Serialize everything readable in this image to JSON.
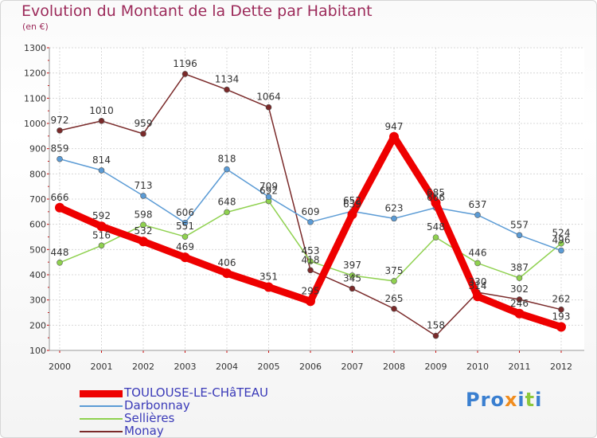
{
  "title": "Evolution du Montant de la Dette par Habitant",
  "unit": "(en €)",
  "logo": {
    "text": "Proxiti",
    "letters": [
      {
        "ch": "P",
        "color": "#3a7fd0"
      },
      {
        "ch": "r",
        "color": "#3a7fd0"
      },
      {
        "ch": "o",
        "color": "#3a7fd0"
      },
      {
        "ch": "x",
        "color": "#f08c1e"
      },
      {
        "ch": "i",
        "color": "#3a7fd0"
      },
      {
        "ch": "t",
        "color": "#8cc83c"
      },
      {
        "ch": "i",
        "color": "#3a7fd0"
      }
    ]
  },
  "chart_data": {
    "type": "line",
    "title": "Evolution du Montant de la Dette par Habitant",
    "ylabel": "(en €)",
    "x": [
      "2000",
      "2001",
      "2002",
      "2003",
      "2004",
      "2005",
      "2006",
      "2007",
      "2008",
      "2009",
      "2010",
      "2011",
      "2012"
    ],
    "ylim": [
      100,
      1300
    ],
    "yticks": [
      100,
      200,
      300,
      400,
      500,
      600,
      700,
      800,
      900,
      1000,
      1100,
      1200,
      1300
    ],
    "grid": true,
    "legend_position": "bottom-left",
    "series": [
      {
        "name": "TOULOUSE-LE-CHâTEAU",
        "color": "#ee0000",
        "values": [
          666,
          592,
          532,
          469,
          406,
          351,
          295,
          639,
          947,
          685,
          314,
          246,
          193
        ]
      },
      {
        "name": "Darbonnay",
        "color": "#5b9bd5",
        "values": [
          859,
          814,
          713,
          606,
          818,
          709,
          609,
          652,
          623,
          666,
          637,
          557,
          496
        ]
      },
      {
        "name": "Sellières",
        "color": "#8fd14f",
        "values": [
          448,
          516,
          598,
          551,
          648,
          692,
          453,
          397,
          375,
          548,
          446,
          387,
          524
        ]
      },
      {
        "name": "Monay",
        "color": "#7a2a2a",
        "values": [
          972,
          1010,
          959,
          1196,
          1134,
          1064,
          418,
          345,
          265,
          158,
          330,
          302,
          262
        ]
      }
    ]
  }
}
